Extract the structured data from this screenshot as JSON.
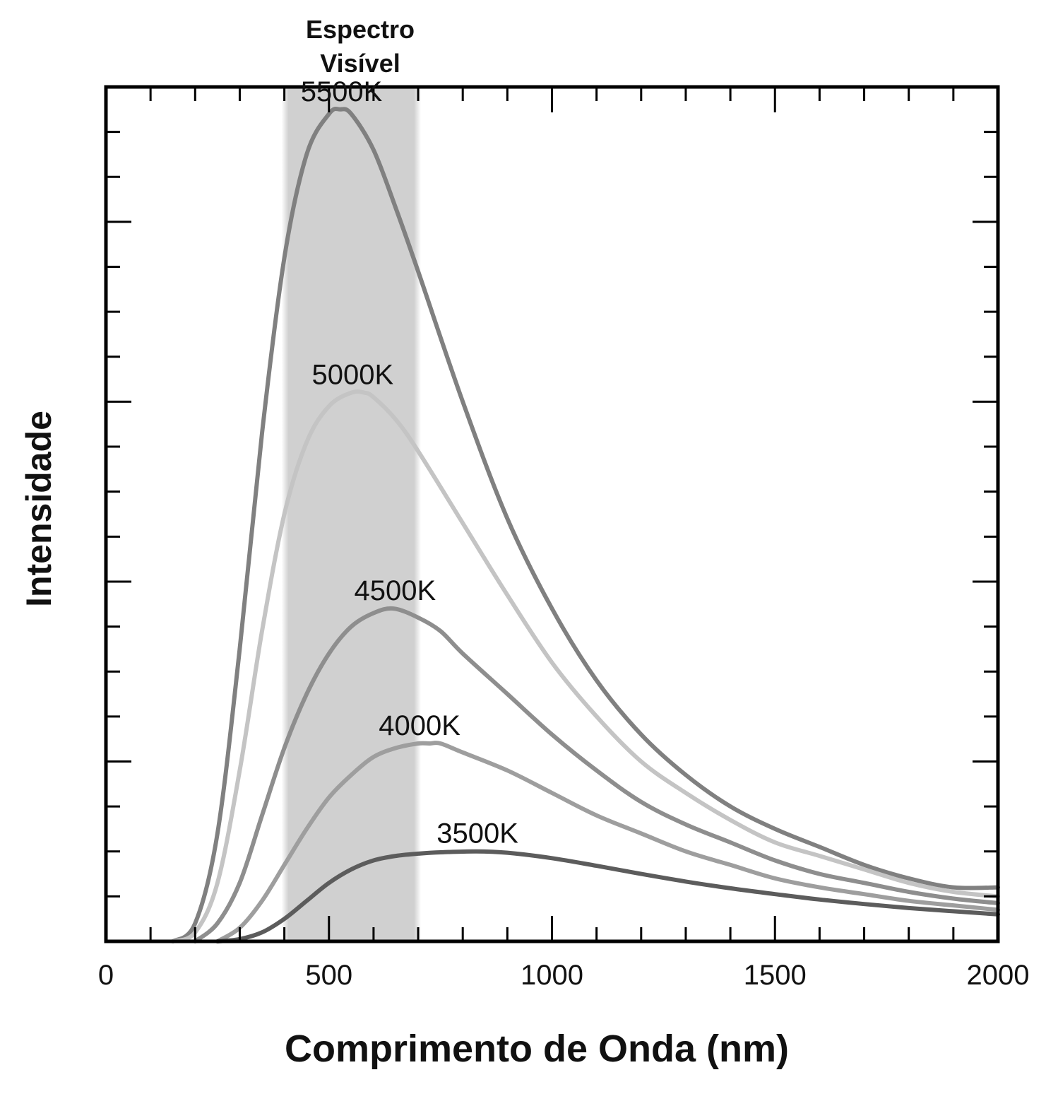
{
  "chart_data": {
    "type": "line",
    "xlabel": "Comprimento de Onda (nm)",
    "ylabel": "Intensidade",
    "xlim": [
      0,
      2000
    ],
    "ylim": [
      0,
      19
    ],
    "x_ticks": [
      "0",
      "500",
      "1000",
      "1500",
      "2000"
    ],
    "x_minor_step": 100,
    "y_tick_count": 19,
    "y_major_every": 4,
    "grid": false,
    "band": {
      "line1": "Espectro",
      "line2": "Visível",
      "from": 400,
      "to": 700,
      "color": "#d0d0d0"
    },
    "series": [
      {
        "name": "5500K",
        "color": "#808080",
        "x": [
          150,
          200,
          250,
          300,
          350,
          400,
          450,
          500,
          525,
          550,
          600,
          650,
          700,
          800,
          900,
          1000,
          1100,
          1200,
          1300,
          1400,
          1500,
          1600,
          1700,
          1800,
          1900,
          2000
        ],
        "values": [
          0.0,
          0.4,
          2.4,
          6.5,
          11.3,
          15.2,
          17.5,
          18.4,
          18.5,
          18.4,
          17.6,
          16.3,
          14.9,
          12.0,
          9.4,
          7.4,
          5.8,
          4.6,
          3.7,
          3.0,
          2.5,
          2.1,
          1.7,
          1.4,
          1.2,
          1.2
        ]
      },
      {
        "name": "5000K",
        "color": "#c4c4c4",
        "x": [
          150,
          200,
          250,
          300,
          350,
          400,
          450,
          500,
          550,
          580,
          600,
          650,
          700,
          800,
          900,
          1000,
          1100,
          1200,
          1300,
          1400,
          1500,
          1600,
          1700,
          1800,
          1900,
          2000
        ],
        "values": [
          0.0,
          0.2,
          1.3,
          3.8,
          6.9,
          9.5,
          11.1,
          11.9,
          12.2,
          12.2,
          12.1,
          11.6,
          10.9,
          9.3,
          7.7,
          6.2,
          5.0,
          4.0,
          3.3,
          2.7,
          2.2,
          1.9,
          1.6,
          1.3,
          1.1,
          1.0
        ]
      },
      {
        "name": "4500K",
        "color": "#8e8e8e",
        "x": [
          200,
          250,
          300,
          350,
          400,
          450,
          500,
          550,
          600,
          645,
          700,
          750,
          800,
          900,
          1000,
          1100,
          1200,
          1300,
          1400,
          1500,
          1600,
          1700,
          1800,
          1900,
          2000
        ],
        "values": [
          0.0,
          0.4,
          1.3,
          2.8,
          4.3,
          5.5,
          6.4,
          7.0,
          7.3,
          7.4,
          7.2,
          6.9,
          6.4,
          5.5,
          4.6,
          3.8,
          3.1,
          2.6,
          2.2,
          1.8,
          1.5,
          1.3,
          1.1,
          0.95,
          0.85
        ]
      },
      {
        "name": "4000K",
        "color": "#9e9e9e",
        "x": [
          250,
          300,
          350,
          400,
          450,
          500,
          550,
          600,
          650,
          700,
          725,
          750,
          800,
          900,
          1000,
          1100,
          1200,
          1300,
          1400,
          1500,
          1600,
          1700,
          1800,
          1900,
          2000
        ],
        "values": [
          0.0,
          0.3,
          0.9,
          1.7,
          2.5,
          3.2,
          3.7,
          4.1,
          4.3,
          4.4,
          4.4,
          4.4,
          4.2,
          3.8,
          3.3,
          2.8,
          2.4,
          2.0,
          1.7,
          1.4,
          1.2,
          1.05,
          0.9,
          0.8,
          0.7
        ]
      },
      {
        "name": "3500K",
        "color": "#5c5c5c",
        "x": [
          250,
          300,
          350,
          400,
          450,
          500,
          550,
          600,
          650,
          700,
          750,
          830,
          900,
          1000,
          1100,
          1200,
          1300,
          1400,
          1500,
          1600,
          1700,
          1800,
          1900,
          2000
        ],
        "values": [
          0.0,
          0.05,
          0.2,
          0.5,
          0.9,
          1.3,
          1.6,
          1.8,
          1.9,
          1.95,
          1.98,
          2.0,
          1.97,
          1.85,
          1.68,
          1.5,
          1.33,
          1.18,
          1.05,
          0.93,
          0.83,
          0.74,
          0.67,
          0.6
        ]
      }
    ]
  }
}
